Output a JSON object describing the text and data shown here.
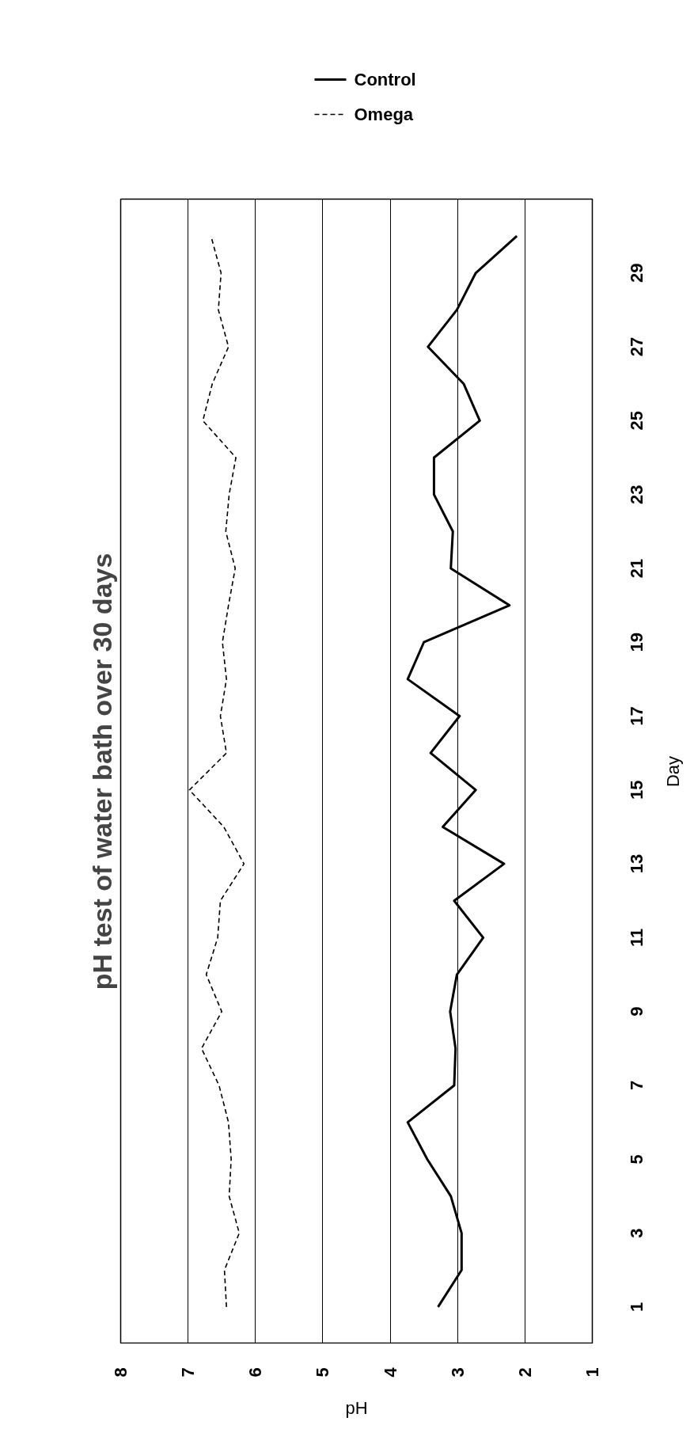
{
  "chart_data": {
    "type": "line",
    "title": "pH test of water bath over 30 days",
    "xlabel": "pH",
    "ylabel": "Day",
    "xlim": [
      8,
      1
    ],
    "xticks": [
      8,
      7,
      6,
      5,
      4,
      3,
      2,
      1
    ],
    "ylim": [
      0,
      31
    ],
    "yticks": [
      1,
      3,
      5,
      7,
      9,
      11,
      13,
      15,
      17,
      19,
      21,
      23,
      25,
      27,
      29
    ],
    "grid": "x",
    "legend": "top",
    "series": [
      {
        "name": "Control",
        "color": "#000000",
        "line_style": "solid",
        "x": [
          3.29,
          2.94,
          2.94,
          3.1,
          3.45,
          3.74,
          3.05,
          3.03,
          3.11,
          3.01,
          2.62,
          3.05,
          2.31,
          3.22,
          2.73,
          3.4,
          2.97,
          3.74,
          3.5,
          2.23,
          3.1,
          3.07,
          3.35,
          3.35,
          2.67,
          2.91,
          3.44,
          3.01,
          2.73,
          2.12
        ],
        "values": [
          1,
          2,
          3,
          4,
          5,
          6,
          7,
          8,
          9,
          10,
          11,
          12,
          13,
          14,
          15,
          16,
          17,
          18,
          19,
          20,
          21,
          22,
          23,
          24,
          25,
          26,
          27,
          28,
          29,
          30
        ]
      },
      {
        "name": "Omega",
        "color": "#000000",
        "line_style": "dashed",
        "x": [
          6.43,
          6.46,
          6.24,
          6.39,
          6.36,
          6.4,
          6.54,
          6.8,
          6.5,
          6.73,
          6.56,
          6.52,
          6.17,
          6.47,
          6.98,
          6.43,
          6.52,
          6.43,
          6.49,
          6.4,
          6.3,
          6.44,
          6.39,
          6.29,
          6.78,
          6.64,
          6.4,
          6.55,
          6.51,
          6.66
        ],
        "values": [
          1,
          2,
          3,
          4,
          5,
          6,
          7,
          8,
          9,
          10,
          11,
          12,
          13,
          14,
          15,
          16,
          17,
          18,
          19,
          20,
          21,
          22,
          23,
          24,
          25,
          26,
          27,
          28,
          29,
          30
        ]
      }
    ]
  }
}
